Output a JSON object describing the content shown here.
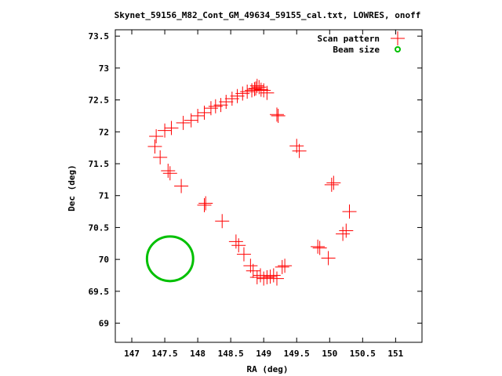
{
  "chart_data": {
    "type": "scatter",
    "title": "Skynet_59156_M82_Cont_GM_49634_59155_cal.txt, LOWRES, onoff",
    "xlabel": "RA (deg)",
    "ylabel": "Dec (deg)",
    "xlim": [
      146.75,
      151.4
    ],
    "ylim": [
      68.7,
      73.6
    ],
    "xticks": [
      147,
      147.5,
      148,
      148.5,
      149,
      149.5,
      150,
      150.5,
      151
    ],
    "xtick_labels": [
      "147",
      "147.5",
      "148",
      "148.5",
      "149",
      "149.5",
      "150",
      "150.5",
      "151"
    ],
    "yticks": [
      69,
      69.5,
      70,
      70.5,
      71,
      71.5,
      72,
      72.5,
      73,
      73.5
    ],
    "ytick_labels": [
      "69",
      "69.5",
      "70",
      "70.5",
      "71",
      "71.5",
      "72",
      "72.5",
      "73",
      "73.5"
    ],
    "grid": false,
    "legend_position": "top-right",
    "series": [
      {
        "name": "Scan pattern",
        "color": "#ff0000",
        "marker": "plus",
        "points": [
          [
            147.35,
            71.77
          ],
          [
            147.37,
            71.93
          ],
          [
            147.43,
            71.6
          ],
          [
            147.5,
            72.02
          ],
          [
            147.55,
            71.39
          ],
          [
            147.6,
            72.06
          ],
          [
            147.58,
            71.35
          ],
          [
            147.75,
            71.15
          ],
          [
            147.78,
            72.14
          ],
          [
            147.9,
            72.18
          ],
          [
            148.0,
            72.25
          ],
          [
            148.1,
            72.3
          ],
          [
            148.2,
            72.37
          ],
          [
            148.27,
            72.4
          ],
          [
            148.35,
            72.42
          ],
          [
            148.43,
            72.47
          ],
          [
            148.52,
            72.52
          ],
          [
            148.6,
            72.56
          ],
          [
            148.68,
            72.6
          ],
          [
            148.75,
            72.63
          ],
          [
            148.82,
            72.65
          ],
          [
            148.86,
            72.67
          ],
          [
            148.88,
            72.68
          ],
          [
            148.9,
            72.72
          ],
          [
            148.93,
            72.7
          ],
          [
            148.96,
            72.66
          ],
          [
            149.0,
            72.65
          ],
          [
            149.05,
            72.61
          ],
          [
            148.1,
            70.85
          ],
          [
            148.12,
            70.88
          ],
          [
            148.37,
            70.6
          ],
          [
            148.58,
            70.28
          ],
          [
            148.62,
            70.22
          ],
          [
            148.7,
            70.08
          ],
          [
            148.8,
            69.9
          ],
          [
            148.84,
            69.82
          ],
          [
            148.9,
            69.72
          ],
          [
            148.95,
            69.75
          ],
          [
            149.0,
            69.7
          ],
          [
            149.05,
            69.72
          ],
          [
            149.1,
            69.73
          ],
          [
            149.15,
            69.75
          ],
          [
            149.2,
            69.7
          ],
          [
            149.28,
            69.88
          ],
          [
            149.32,
            69.9
          ],
          [
            149.2,
            72.27
          ],
          [
            149.22,
            72.25
          ],
          [
            149.5,
            71.78
          ],
          [
            149.54,
            71.7
          ],
          [
            149.82,
            70.2
          ],
          [
            149.85,
            70.18
          ],
          [
            149.98,
            70.02
          ],
          [
            150.03,
            71.17
          ],
          [
            150.06,
            71.2
          ],
          [
            150.2,
            70.4
          ],
          [
            150.25,
            70.45
          ],
          [
            150.3,
            70.75
          ]
        ]
      },
      {
        "name": "Beam size",
        "color": "#00c000",
        "marker": "circle",
        "center": [
          147.58,
          70.01
        ],
        "radius_deg": 0.35
      }
    ]
  }
}
